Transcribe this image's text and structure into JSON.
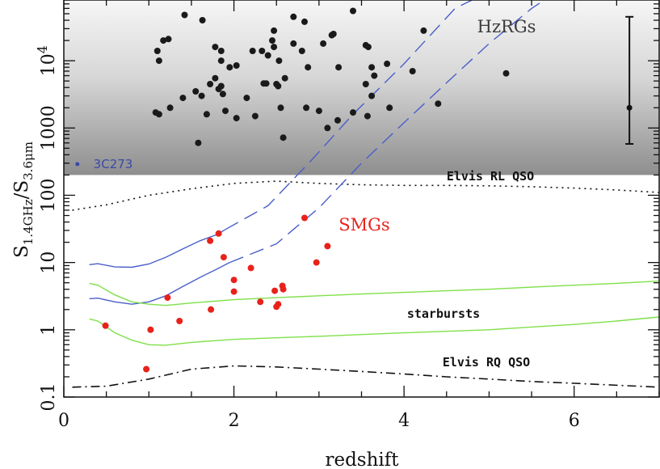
{
  "chart_data": {
    "type": "scatter",
    "xlabel": "redshift",
    "ylabel": {
      "main": "S",
      "sub1": "1.4GHz",
      "sep": "/S",
      "sub2": "3.6μm"
    },
    "xlim": [
      0,
      7
    ],
    "ylim": [
      0.1,
      80000
    ],
    "y_scale": "log",
    "x_ticks": [
      {
        "value": 0,
        "label": "0"
      },
      {
        "value": 2,
        "label": "2"
      },
      {
        "value": 4,
        "label": "4"
      },
      {
        "value": 6,
        "label": "6"
      }
    ],
    "y_ticks": [
      {
        "value": 0.1,
        "label": "0.1"
      },
      {
        "value": 1,
        "label": "1"
      },
      {
        "value": 10,
        "label": "10"
      },
      {
        "value": 100,
        "label": "100"
      },
      {
        "value": 1000,
        "label": "1000"
      },
      {
        "value": 10000,
        "label": "10",
        "exp": "4"
      }
    ],
    "hzrg_region": {
      "label": "HzRGs",
      "ymin": 200
    },
    "annotations": {
      "elvis_rl": "Elvis RL QSO",
      "elvis_rq": "Elvis RQ QSO",
      "starbursts": "starbursts",
      "smgs": "SMGs",
      "source_3c273": "3C273"
    },
    "colors": {
      "hzrg_points": "#1a1a1a",
      "smg_points": "#e8221b",
      "blue_tracks": "#4a5fc8",
      "green_tracks": "#7fe04a",
      "source_3c273": "#3a49a8",
      "qso_lines": "#111111"
    },
    "series": [
      {
        "name": "HzRGs",
        "kind": "points",
        "points": [
          [
            1.42,
            48000
          ],
          [
            1.63,
            40000
          ],
          [
            2.7,
            45000
          ],
          [
            3.4,
            55000
          ],
          [
            1.17,
            20000
          ],
          [
            1.23,
            21000
          ],
          [
            1.1,
            14000
          ],
          [
            1.12,
            10000
          ],
          [
            1.78,
            16000
          ],
          [
            1.85,
            14000
          ],
          [
            1.85,
            10000
          ],
          [
            1.95,
            8000
          ],
          [
            2.03,
            8500
          ],
          [
            2.22,
            14000
          ],
          [
            2.33,
            14000
          ],
          [
            2.4,
            12000
          ],
          [
            2.45,
            20000
          ],
          [
            2.47,
            28000
          ],
          [
            2.47,
            16000
          ],
          [
            2.53,
            10000
          ],
          [
            2.7,
            18000
          ],
          [
            2.8,
            14000
          ],
          [
            2.83,
            38000
          ],
          [
            2.87,
            8000
          ],
          [
            3.05,
            18000
          ],
          [
            3.15,
            24000
          ],
          [
            3.17,
            25000
          ],
          [
            3.23,
            8000
          ],
          [
            3.55,
            17000
          ],
          [
            3.58,
            16000
          ],
          [
            3.62,
            8000
          ],
          [
            3.65,
            6000
          ],
          [
            3.8,
            9000
          ],
          [
            4.23,
            28000
          ],
          [
            4.1,
            7000
          ],
          [
            5.2,
            6500
          ],
          [
            1.55,
            3500
          ],
          [
            1.62,
            3000
          ],
          [
            1.72,
            4500
          ],
          [
            1.78,
            5500
          ],
          [
            1.82,
            3800
          ],
          [
            1.85,
            4200
          ],
          [
            1.87,
            3200
          ],
          [
            2.15,
            2800
          ],
          [
            2.35,
            4600
          ],
          [
            2.38,
            4600
          ],
          [
            2.5,
            4500
          ],
          [
            2.52,
            4200
          ],
          [
            2.6,
            5500
          ],
          [
            3.55,
            4500
          ],
          [
            3.62,
            3000
          ],
          [
            1.08,
            1700
          ],
          [
            1.12,
            1600
          ],
          [
            1.25,
            2000
          ],
          [
            1.4,
            2800
          ],
          [
            1.68,
            1600
          ],
          [
            1.9,
            1800
          ],
          [
            2.03,
            1400
          ],
          [
            2.25,
            1500
          ],
          [
            2.55,
            2000
          ],
          [
            2.85,
            2000
          ],
          [
            3.0,
            1800
          ],
          [
            3.1,
            1000
          ],
          [
            3.22,
            1300
          ],
          [
            3.4,
            1700
          ],
          [
            3.57,
            1500
          ],
          [
            3.83,
            2000
          ],
          [
            4.4,
            2300
          ],
          [
            1.58,
            600
          ],
          [
            2.58,
            720
          ]
        ]
      },
      {
        "name": "SMGs",
        "kind": "points",
        "points": [
          [
            0.49,
            1.15
          ],
          [
            0.97,
            0.26
          ],
          [
            1.02,
            1.0
          ],
          [
            1.22,
            3.0
          ],
          [
            1.36,
            1.35
          ],
          [
            1.72,
            21.0
          ],
          [
            1.82,
            27.0
          ],
          [
            1.88,
            12.0
          ],
          [
            1.73,
            2.0
          ],
          [
            2.0,
            5.5
          ],
          [
            2.0,
            3.7
          ],
          [
            2.2,
            8.3
          ],
          [
            2.31,
            2.6
          ],
          [
            2.48,
            3.8
          ],
          [
            2.5,
            2.2
          ],
          [
            2.52,
            2.4
          ],
          [
            2.57,
            4.5
          ],
          [
            2.58,
            4.0
          ],
          [
            2.83,
            46.0
          ],
          [
            2.97,
            10.0
          ],
          [
            3.1,
            17.5
          ]
        ]
      },
      {
        "name": "3C273",
        "kind": "points",
        "points": [
          [
            0.16,
            290
          ]
        ]
      },
      {
        "name": "error bar",
        "kind": "errorbar",
        "x": 6.65,
        "y": 2000,
        "ylow": 580,
        "yhigh": 45000
      },
      {
        "name": "Elvis RL QSO",
        "kind": "line",
        "style": "dotted",
        "points": [
          [
            0.1,
            60
          ],
          [
            0.5,
            72
          ],
          [
            1.0,
            100
          ],
          [
            1.5,
            125
          ],
          [
            2.0,
            150
          ],
          [
            2.5,
            162
          ],
          [
            3.0,
            150
          ],
          [
            3.5,
            143
          ],
          [
            4.0,
            140
          ],
          [
            4.5,
            140
          ],
          [
            5.0,
            138
          ],
          [
            5.5,
            134
          ],
          [
            6.0,
            128
          ],
          [
            6.5,
            120
          ],
          [
            7.0,
            110
          ]
        ]
      },
      {
        "name": "Elvis RQ QSO",
        "kind": "line",
        "style": "dashdot",
        "points": [
          [
            0.1,
            0.14
          ],
          [
            0.5,
            0.145
          ],
          [
            1.0,
            0.185
          ],
          [
            1.5,
            0.26
          ],
          [
            2.0,
            0.29
          ],
          [
            2.5,
            0.28
          ],
          [
            3.0,
            0.26
          ],
          [
            3.5,
            0.24
          ],
          [
            4.0,
            0.22
          ],
          [
            4.5,
            0.2
          ],
          [
            5.0,
            0.185
          ],
          [
            5.5,
            0.17
          ],
          [
            6.0,
            0.16
          ],
          [
            6.5,
            0.15
          ],
          [
            7.0,
            0.14
          ]
        ]
      },
      {
        "name": "blue track upper",
        "kind": "line",
        "style": "solid",
        "points": [
          [
            0.3,
            9.3
          ],
          [
            0.4,
            9.6
          ],
          [
            0.6,
            8.6
          ],
          [
            0.8,
            8.5
          ],
          [
            1.0,
            9.5
          ],
          [
            1.2,
            12.0
          ],
          [
            1.4,
            16.0
          ],
          [
            1.6,
            21.0
          ],
          [
            1.8,
            26.0
          ],
          [
            1.9,
            31.0
          ]
        ]
      },
      {
        "name": "blue track upper (extrapolated)",
        "kind": "line",
        "style": "dashed",
        "points": [
          [
            1.9,
            31.0
          ],
          [
            2.4,
            70
          ],
          [
            2.9,
            320
          ],
          [
            3.4,
            1600
          ],
          [
            4.0,
            9000
          ],
          [
            4.6,
            60000
          ],
          [
            4.8,
            80000
          ]
        ]
      },
      {
        "name": "blue track lower",
        "kind": "line",
        "style": "solid",
        "points": [
          [
            0.3,
            2.9
          ],
          [
            0.4,
            2.95
          ],
          [
            0.6,
            2.6
          ],
          [
            0.8,
            2.4
          ],
          [
            1.0,
            2.6
          ],
          [
            1.2,
            3.2
          ],
          [
            1.4,
            4.4
          ],
          [
            1.6,
            6.0
          ],
          [
            1.8,
            8.0
          ],
          [
            1.95,
            10.0
          ]
        ]
      },
      {
        "name": "blue track lower (extrapolated)",
        "kind": "line",
        "style": "dashed",
        "points": [
          [
            1.95,
            10.0
          ],
          [
            2.5,
            19
          ],
          [
            3.0,
            65
          ],
          [
            3.5,
            300
          ],
          [
            4.0,
            1200
          ],
          [
            4.5,
            4700
          ],
          [
            5.0,
            18000
          ],
          [
            5.5,
            60000
          ],
          [
            5.65,
            80000
          ]
        ]
      },
      {
        "name": "starburst track upper",
        "kind": "line",
        "style": "solid",
        "points": [
          [
            0.3,
            4.9
          ],
          [
            0.4,
            4.6
          ],
          [
            0.6,
            3.3
          ],
          [
            0.8,
            2.6
          ],
          [
            1.0,
            2.4
          ],
          [
            1.2,
            2.3
          ],
          [
            1.5,
            2.5
          ],
          [
            2.0,
            2.8
          ],
          [
            2.5,
            3.0
          ],
          [
            3.0,
            3.2
          ],
          [
            3.5,
            3.4
          ],
          [
            4.0,
            3.6
          ],
          [
            4.5,
            3.8
          ],
          [
            5.0,
            4.0
          ],
          [
            5.5,
            4.3
          ],
          [
            6.0,
            4.6
          ],
          [
            6.5,
            4.9
          ],
          [
            7.0,
            5.3
          ]
        ]
      },
      {
        "name": "starburst track lower",
        "kind": "line",
        "style": "solid",
        "points": [
          [
            0.3,
            1.45
          ],
          [
            0.4,
            1.35
          ],
          [
            0.6,
            0.9
          ],
          [
            0.8,
            0.7
          ],
          [
            1.0,
            0.6
          ],
          [
            1.2,
            0.59
          ],
          [
            1.5,
            0.65
          ],
          [
            2.0,
            0.72
          ],
          [
            2.5,
            0.76
          ],
          [
            3.0,
            0.8
          ],
          [
            3.5,
            0.85
          ],
          [
            4.0,
            0.9
          ],
          [
            4.5,
            0.95
          ],
          [
            5.0,
            1.0
          ],
          [
            5.5,
            1.1
          ],
          [
            6.0,
            1.2
          ],
          [
            6.5,
            1.35
          ],
          [
            7.0,
            1.55
          ]
        ]
      }
    ]
  }
}
